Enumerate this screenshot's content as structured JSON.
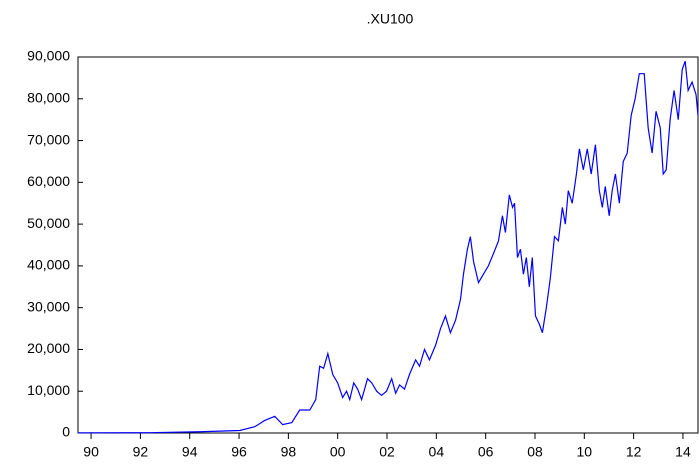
{
  "chart_data": {
    "type": "line",
    "title": ".XU100",
    "x": [
      1989.47,
      1992.39,
      1994.41,
      1996.03,
      1996.64,
      1997.04,
      1997.45,
      1997.77,
      1998.14,
      1998.46,
      1998.87,
      1999.11,
      1999.27,
      1999.43,
      1999.6,
      1999.8,
      2000.0,
      2000.2,
      2000.36,
      2000.49,
      2000.65,
      2000.81,
      2000.97,
      2001.21,
      2001.38,
      2001.58,
      2001.78,
      2001.98,
      2002.19,
      2002.35,
      2002.51,
      2002.71,
      2002.91,
      2003.16,
      2003.32,
      2003.52,
      2003.72,
      2003.97,
      2004.17,
      2004.37,
      2004.57,
      2004.78,
      2004.98,
      2005.1,
      2005.26,
      2005.38,
      2005.51,
      2005.71,
      2005.91,
      2006.11,
      2006.32,
      2006.52,
      2006.68,
      2006.8,
      2006.96,
      2007.09,
      2007.17,
      2007.29,
      2007.41,
      2007.53,
      2007.65,
      2007.77,
      2007.89,
      2008.02,
      2008.18,
      2008.3,
      2008.46,
      2008.62,
      2008.79,
      2008.95,
      2009.11,
      2009.23,
      2009.35,
      2009.51,
      2009.68,
      2009.8,
      2009.96,
      2010.12,
      2010.28,
      2010.45,
      2010.61,
      2010.73,
      2010.85,
      2011.01,
      2011.13,
      2011.26,
      2011.42,
      2011.58,
      2011.74,
      2011.9,
      2012.06,
      2012.23,
      2012.43,
      2012.59,
      2012.75,
      2012.91,
      2013.08,
      2013.2,
      2013.32,
      2013.48,
      2013.64,
      2013.81,
      2013.97,
      2014.09,
      2014.21,
      2014.37,
      2014.53,
      2014.61
    ],
    "series": [
      {
        "name": ".XU100",
        "color": "#0000ff",
        "values": [
          50,
          80,
          300,
          600,
          1500,
          3000,
          4000,
          2000,
          2500,
          5500,
          5500,
          8000,
          16000,
          15500,
          19000,
          14000,
          12000,
          8500,
          10000,
          8000,
          12000,
          10500,
          8000,
          13000,
          12000,
          10000,
          9000,
          10000,
          13000,
          9500,
          11500,
          10500,
          14000,
          17500,
          16000,
          20000,
          17500,
          21000,
          25000,
          28000,
          24000,
          27000,
          32000,
          38000,
          44000,
          47000,
          41000,
          36000,
          38000,
          40000,
          43000,
          46000,
          52000,
          48000,
          57000,
          54000,
          55000,
          42000,
          44000,
          38000,
          42000,
          35000,
          42000,
          28000,
          26000,
          24000,
          30000,
          37000,
          47000,
          46000,
          54000,
          50000,
          58000,
          55000,
          62000,
          68000,
          63000,
          68000,
          62000,
          69000,
          58000,
          54000,
          59000,
          52000,
          58000,
          62000,
          55000,
          65000,
          67000,
          76000,
          80000,
          86000,
          86000,
          73000,
          67000,
          77000,
          73000,
          62000,
          63000,
          75000,
          82000,
          75000,
          87000,
          89000,
          82000,
          84000,
          81000,
          76000
        ]
      }
    ],
    "xlim": [
      1989.47,
      2014.61
    ],
    "xticks": [
      {
        "value": 1990,
        "label": "90"
      },
      {
        "value": 1992,
        "label": "92"
      },
      {
        "value": 1994,
        "label": "94"
      },
      {
        "value": 1996,
        "label": "96"
      },
      {
        "value": 1998,
        "label": "98"
      },
      {
        "value": 2000,
        "label": "00"
      },
      {
        "value": 2002,
        "label": "02"
      },
      {
        "value": 2004,
        "label": "04"
      },
      {
        "value": 2006,
        "label": "06"
      },
      {
        "value": 2008,
        "label": "08"
      },
      {
        "value": 2010,
        "label": "10"
      },
      {
        "value": 2012,
        "label": "12"
      },
      {
        "value": 2014,
        "label": "14"
      }
    ],
    "ylim": [
      0,
      90000
    ],
    "yticks": [
      0,
      {
        "value": 10000,
        "label": "10,000"
      },
      {
        "value": 20000,
        "label": "20,000"
      },
      {
        "value": 30000,
        "label": "30,000"
      },
      {
        "value": 40000,
        "label": "40,000"
      },
      {
        "value": 50000,
        "label": "50,000"
      },
      {
        "value": 60000,
        "label": "60,000"
      },
      {
        "value": 70000,
        "label": "70,000"
      },
      {
        "value": 80000,
        "label": "80,000"
      },
      {
        "value": 90000,
        "label": "90,000"
      }
    ]
  }
}
